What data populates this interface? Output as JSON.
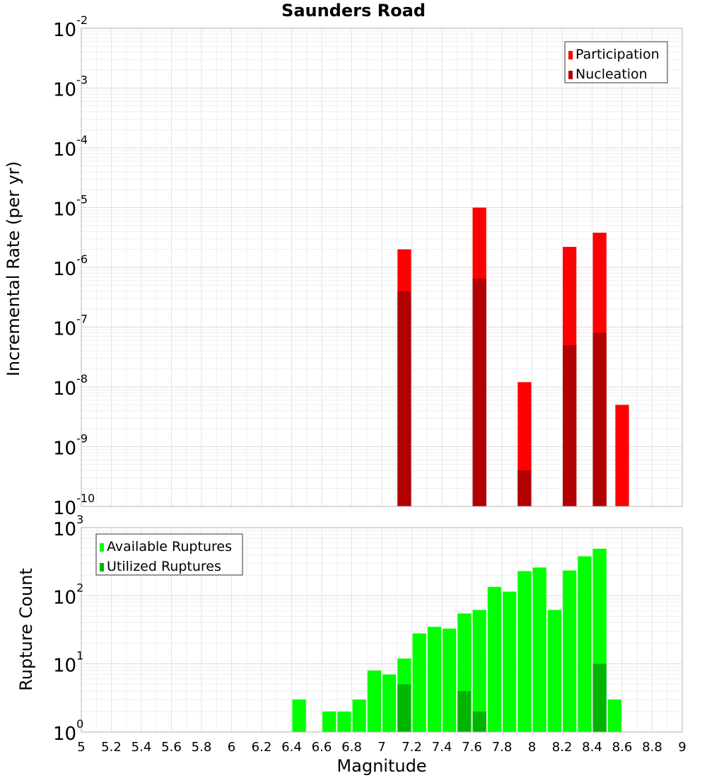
{
  "chart_data": [
    {
      "type": "bar",
      "id": "rate",
      "title": "Saunders Road",
      "xlabel": "",
      "ylabel": "Incremental Rate (per yr)",
      "yscale": "log",
      "ylim_exp": [
        -10,
        -2
      ],
      "xlim": [
        5,
        9
      ],
      "bar_width": 0.1,
      "legend": {
        "position": "top-right",
        "entries": [
          "Participation",
          "Nucleation"
        ]
      },
      "series": [
        {
          "name": "Participation",
          "color": "#ff0000",
          "x": [
            7.15,
            7.65,
            7.95,
            8.25,
            8.45,
            8.6
          ],
          "values": [
            2e-06,
            1e-05,
            1.2e-08,
            2.2e-06,
            3.8e-06,
            5e-09
          ]
        },
        {
          "name": "Nucleation",
          "color": "#b00000",
          "x": [
            7.15,
            7.65,
            7.95,
            8.25,
            8.45
          ],
          "values": [
            4e-07,
            6.5e-07,
            4e-10,
            5e-08,
            8e-08
          ]
        }
      ]
    },
    {
      "type": "bar",
      "id": "count",
      "xlabel": "Magnitude",
      "ylabel": "Rupture Count",
      "yscale": "log",
      "ylim_exp": [
        0,
        3
      ],
      "xlim": [
        5,
        9
      ],
      "bar_width": 0.1,
      "legend": {
        "position": "top-left",
        "entries": [
          "Available Ruptures",
          "Utilized Ruptures"
        ]
      },
      "series": [
        {
          "name": "Available Ruptures",
          "color": "#00ff00",
          "x": [
            6.45,
            6.65,
            6.75,
            6.85,
            6.95,
            7.05,
            7.15,
            7.25,
            7.35,
            7.45,
            7.55,
            7.65,
            7.75,
            7.85,
            7.95,
            8.05,
            8.15,
            8.25,
            8.35,
            8.45,
            8.55
          ],
          "values": [
            3,
            2,
            2,
            3,
            8,
            7,
            12,
            28,
            35,
            33,
            55,
            62,
            135,
            115,
            230,
            260,
            62,
            235,
            380,
            490,
            3
          ]
        },
        {
          "name": "Utilized Ruptures",
          "color": "#00b400",
          "x": [
            7.15,
            7.35,
            7.55,
            7.65,
            7.85,
            8.05,
            8.35,
            8.45,
            8.55
          ],
          "values": [
            5,
            1,
            4,
            2,
            1,
            1,
            1,
            10,
            1
          ]
        }
      ]
    }
  ],
  "x_ticks": [
    "5",
    "5.2",
    "5.4",
    "5.6",
    "5.8",
    "6",
    "6.2",
    "6.4",
    "6.6",
    "6.8",
    "7",
    "7.2",
    "7.4",
    "7.6",
    "7.8",
    "8",
    "8.2",
    "8.4",
    "8.6",
    "8.8",
    "9"
  ],
  "tick_base": "10"
}
